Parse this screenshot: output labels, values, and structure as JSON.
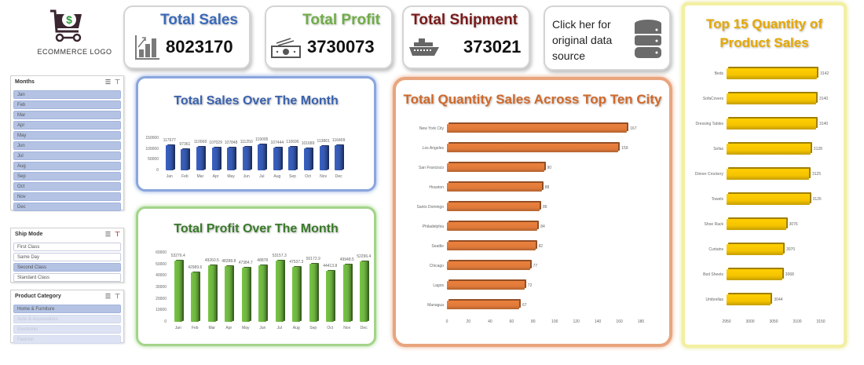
{
  "logo": {
    "text": "ECOMMERCE LOGO",
    "icon": "shopping-cart-dollar-icon"
  },
  "kpis": [
    {
      "title": "Total Sales",
      "value": "8023170",
      "title_color": "#3a6aba",
      "icon": "bar-chart-growth-icon"
    },
    {
      "title": "Total Profit",
      "value": "3730073",
      "title_color": "#70ad47",
      "icon": "money-bills-icon"
    },
    {
      "title": "Total Shipment",
      "value": "373021",
      "title_color": "#7a1a1a",
      "icon": "cruise-ship-icon"
    }
  ],
  "data_source": {
    "label": "Click her for original data source",
    "line1": "Click her for",
    "line2": "original data",
    "line3": "source",
    "icon": "database-icon"
  },
  "slicers": {
    "months": {
      "title": "Months",
      "items": [
        "Jan",
        "Feb",
        "Mar",
        "Apr",
        "May",
        "Jun",
        "Jul",
        "Aug",
        "Sep",
        "Oct",
        "Nov",
        "Dec"
      ]
    },
    "ship_mode": {
      "title": "Ship Mode",
      "items": [
        "First Class",
        "Same Day",
        "Second Class",
        "Standard Class"
      ],
      "selected": "Second Class"
    },
    "product_category": {
      "title": "Product Category",
      "items": [
        "Home & Furniture",
        "Auto & Accessories",
        "Electronic",
        "Fashion"
      ],
      "selected": "Home & Furniture"
    }
  },
  "chart_data": [
    {
      "type": "bar",
      "title": "Total Sales Over The Month",
      "categories": [
        "Jan",
        "Feb",
        "Mar",
        "Apr",
        "May",
        "Jun",
        "Jul",
        "Aug",
        "Sep",
        "Oct",
        "Nov",
        "Dec"
      ],
      "values": [
        117677,
        97361,
        110068,
        107029,
        107848,
        111250,
        119095,
        107444,
        110696,
        101689,
        113861,
        116409
      ],
      "value_labels": [
        "117677",
        "97361",
        "110068",
        "107029",
        "107848",
        "111250",
        "119095",
        "107444",
        "110696",
        "101689",
        "113861",
        "116409"
      ],
      "yticks": [
        "150000",
        "100000",
        "50000",
        "0"
      ],
      "ylim": [
        0,
        150000
      ],
      "color": "#3558b0"
    },
    {
      "type": "bar",
      "title": "Total Profit Over The Month",
      "categories": [
        "Jan",
        "Feb",
        "Mar",
        "Apr",
        "May",
        "Jun",
        "Jul",
        "Aug",
        "Sep",
        "Oct",
        "Nov",
        "Dec"
      ],
      "values": [
        53276.4,
        42989.6,
        49260.5,
        48288.8,
        47384.7,
        48878,
        53157.3,
        47537.3,
        50172.9,
        44413.8,
        49948.5,
        52296.4
      ],
      "value_labels": [
        "53276.4",
        "42989.6",
        "49260.5",
        "48288.8",
        "47384.7",
        "48878",
        "53157.3",
        "47537.3",
        "50172.9",
        "44413.8",
        "49948.5",
        "52296.4"
      ],
      "yticks": [
        "60000",
        "50000",
        "40000",
        "30000",
        "20000",
        "10000",
        "0"
      ],
      "ylim": [
        0,
        60000
      ],
      "color": "#6db33f"
    },
    {
      "type": "bar",
      "orientation": "horizontal",
      "title": "Total Quantity Sales Across Top Ten City",
      "categories": [
        "New York City",
        "Los Angeles",
        "San Francisco",
        "Houston",
        "Santo Domingo",
        "Philadelphia",
        "Seattle",
        "Chicago",
        "Lagos",
        "Managua"
      ],
      "values": [
        167,
        159,
        90,
        88,
        86,
        84,
        82,
        77,
        72,
        67
      ],
      "xticks": [
        "0",
        "20",
        "40",
        "60",
        "80",
        "100",
        "120",
        "140",
        "160",
        "180"
      ],
      "xlim": [
        0,
        180
      ],
      "color": "#e07a3a"
    },
    {
      "type": "bar",
      "orientation": "horizontal",
      "title": "Top 15 Quantity of Product Sales",
      "categories": [
        "Beds",
        "SofaCovers",
        "Dressing Tables",
        "Sofas",
        "Dinner Crockery",
        "Towels",
        "Shoe Rack",
        "Curtains",
        "Bed Sheets",
        "Umbrellas"
      ],
      "values": [
        3142,
        3140,
        3140,
        3128,
        3125,
        3126,
        3076,
        3070,
        3068,
        3044
      ],
      "xticks": [
        "2950",
        "3000",
        "3050",
        "3100",
        "3150"
      ],
      "xlim": [
        2950,
        3150
      ],
      "color": "#f5c400"
    }
  ]
}
